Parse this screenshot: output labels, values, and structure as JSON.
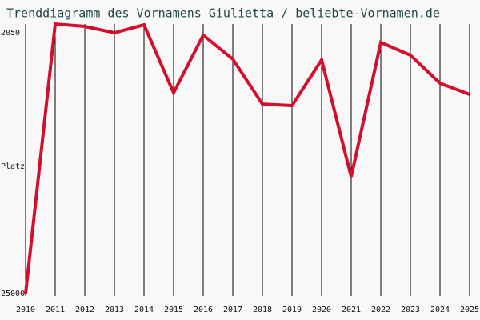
{
  "chart_data": {
    "type": "line",
    "title": "Trenddiagramm des Vornamens Giulietta / beliebte-Vornamen.de",
    "ylabel": "Platz",
    "categories": [
      "2010",
      "2011",
      "2012",
      "2013",
      "2014",
      "2015",
      "2016",
      "2017",
      "2018",
      "2019",
      "2020",
      "2021",
      "2022",
      "2023",
      "2024",
      "2025"
    ],
    "values": [
      25000,
      1280,
      1490,
      2050,
      1350,
      7330,
      2260,
      4370,
      8320,
      8460,
      4440,
      14720,
      2900,
      4020,
      6490,
      7470
    ],
    "color": "#d20f2d",
    "ylim": [
      25000,
      2050
    ],
    "yticks": [
      2050,
      25000
    ],
    "grid": true
  }
}
